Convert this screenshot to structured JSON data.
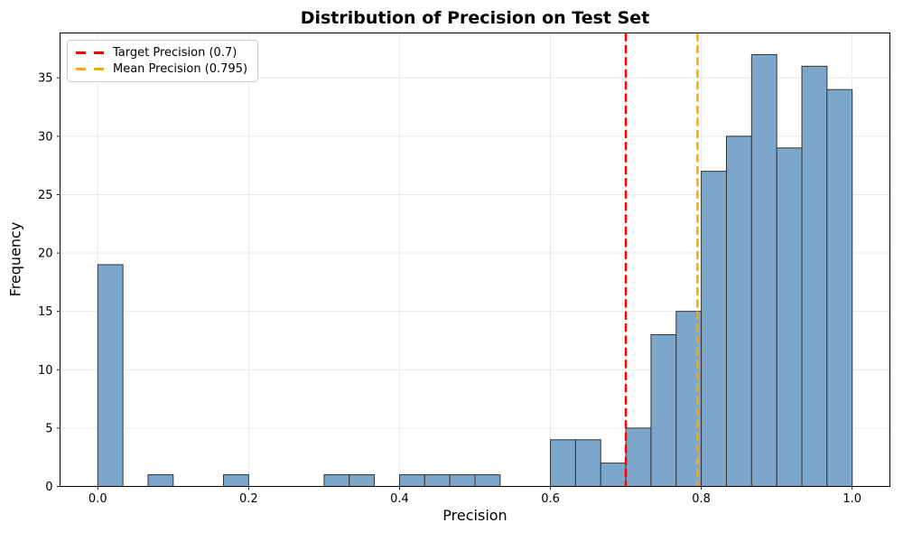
{
  "chart_data": {
    "type": "bar",
    "subtype": "histogram",
    "title": "Distribution of Precision on Test Set",
    "xlabel": "Precision",
    "ylabel": "Frequency",
    "bin_start": 0.0,
    "bin_end": 1.0,
    "bin_count": 30,
    "counts": [
      19,
      0,
      1,
      0,
      0,
      1,
      0,
      0,
      0,
      1,
      1,
      0,
      1,
      1,
      1,
      1,
      0,
      0,
      4,
      4,
      2,
      5,
      13,
      15,
      27,
      30,
      37,
      29,
      36,
      34
    ],
    "xlim": [
      -0.05,
      1.05
    ],
    "ylim": [
      0,
      38.85
    ],
    "xticks": [
      0.0,
      0.2,
      0.4,
      0.6,
      0.8,
      1.0
    ],
    "xtick_labels": [
      "0.0",
      "0.2",
      "0.4",
      "0.6",
      "0.8",
      "1.0"
    ],
    "yticks": [
      0,
      5,
      10,
      15,
      20,
      25,
      30,
      35
    ],
    "ytick_labels": [
      "0",
      "5",
      "10",
      "15",
      "20",
      "25",
      "30",
      "35"
    ],
    "grid": true,
    "grid_color": "#e8e8e8",
    "bar_color": "#7da7ca",
    "bar_edge_color": "#333333",
    "spine_color": "#000000",
    "legend_position": "upper left",
    "vlines": [
      {
        "label": "Target Precision (0.7)",
        "x": 0.7,
        "color": "#ff0000",
        "style": "dashed"
      },
      {
        "label": "Mean Precision (0.795)",
        "x": 0.795,
        "color": "#ffa500",
        "style": "dashed"
      }
    ]
  }
}
